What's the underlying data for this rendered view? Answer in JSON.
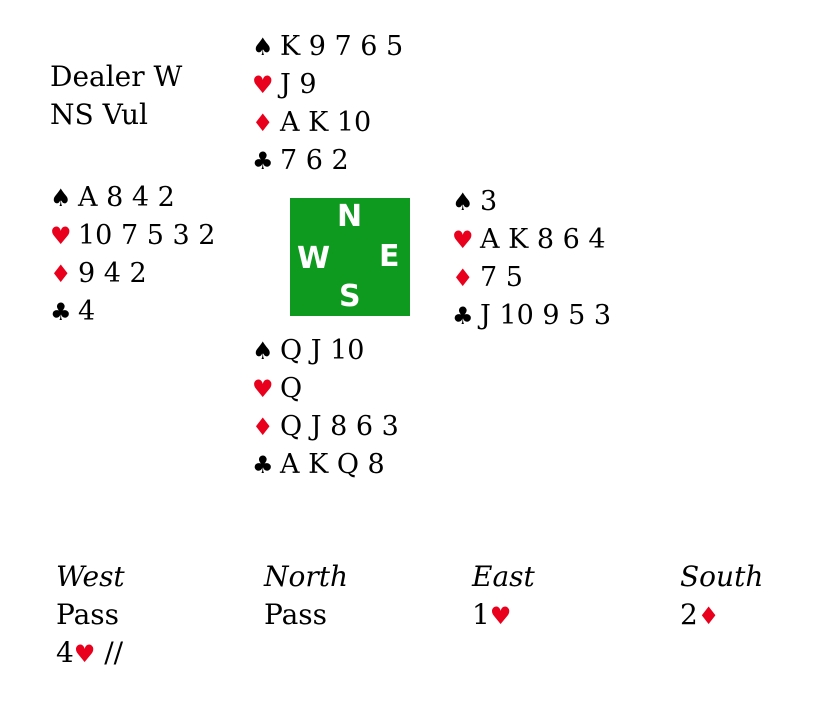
{
  "info": {
    "dealer": "Dealer W",
    "vulnerability": "NS Vul"
  },
  "compass": {
    "n": "N",
    "s": "S",
    "e": "E",
    "w": "W"
  },
  "suits": {
    "spades": "♠",
    "hearts": "♥",
    "diamonds": "♦",
    "clubs": "♣"
  },
  "hands": {
    "north": {
      "spades": "K 9 7 6 5",
      "hearts": "J 9",
      "diamonds": "A K 10",
      "clubs": "7 6 2"
    },
    "west": {
      "spades": "A 8 4 2",
      "hearts": "10 7 5 3 2",
      "diamonds": "9 4 2",
      "clubs": "4"
    },
    "east": {
      "spades": "3",
      "hearts": "A K 8 6 4",
      "diamonds": "7 5",
      "clubs": "J 10 9 5 3"
    },
    "south": {
      "spades": "Q J 10",
      "hearts": "Q",
      "diamonds": "Q J 8 6 3",
      "clubs": "A K Q 8"
    }
  },
  "auction": {
    "headers": [
      "West",
      "North",
      "East",
      "South"
    ],
    "rows": [
      [
        {
          "level": "Pass",
          "suit": "",
          "tail": ""
        },
        {
          "level": "Pass",
          "suit": "",
          "tail": ""
        },
        {
          "level": "1",
          "suit": "♥",
          "tail": ""
        },
        {
          "level": "2",
          "suit": "♦",
          "tail": ""
        }
      ],
      [
        {
          "level": "4",
          "suit": "♥",
          "tail": " //"
        }
      ]
    ]
  },
  "colors": {
    "red_suit": "#e8001c",
    "compass_bg": "#0e9a1e"
  }
}
